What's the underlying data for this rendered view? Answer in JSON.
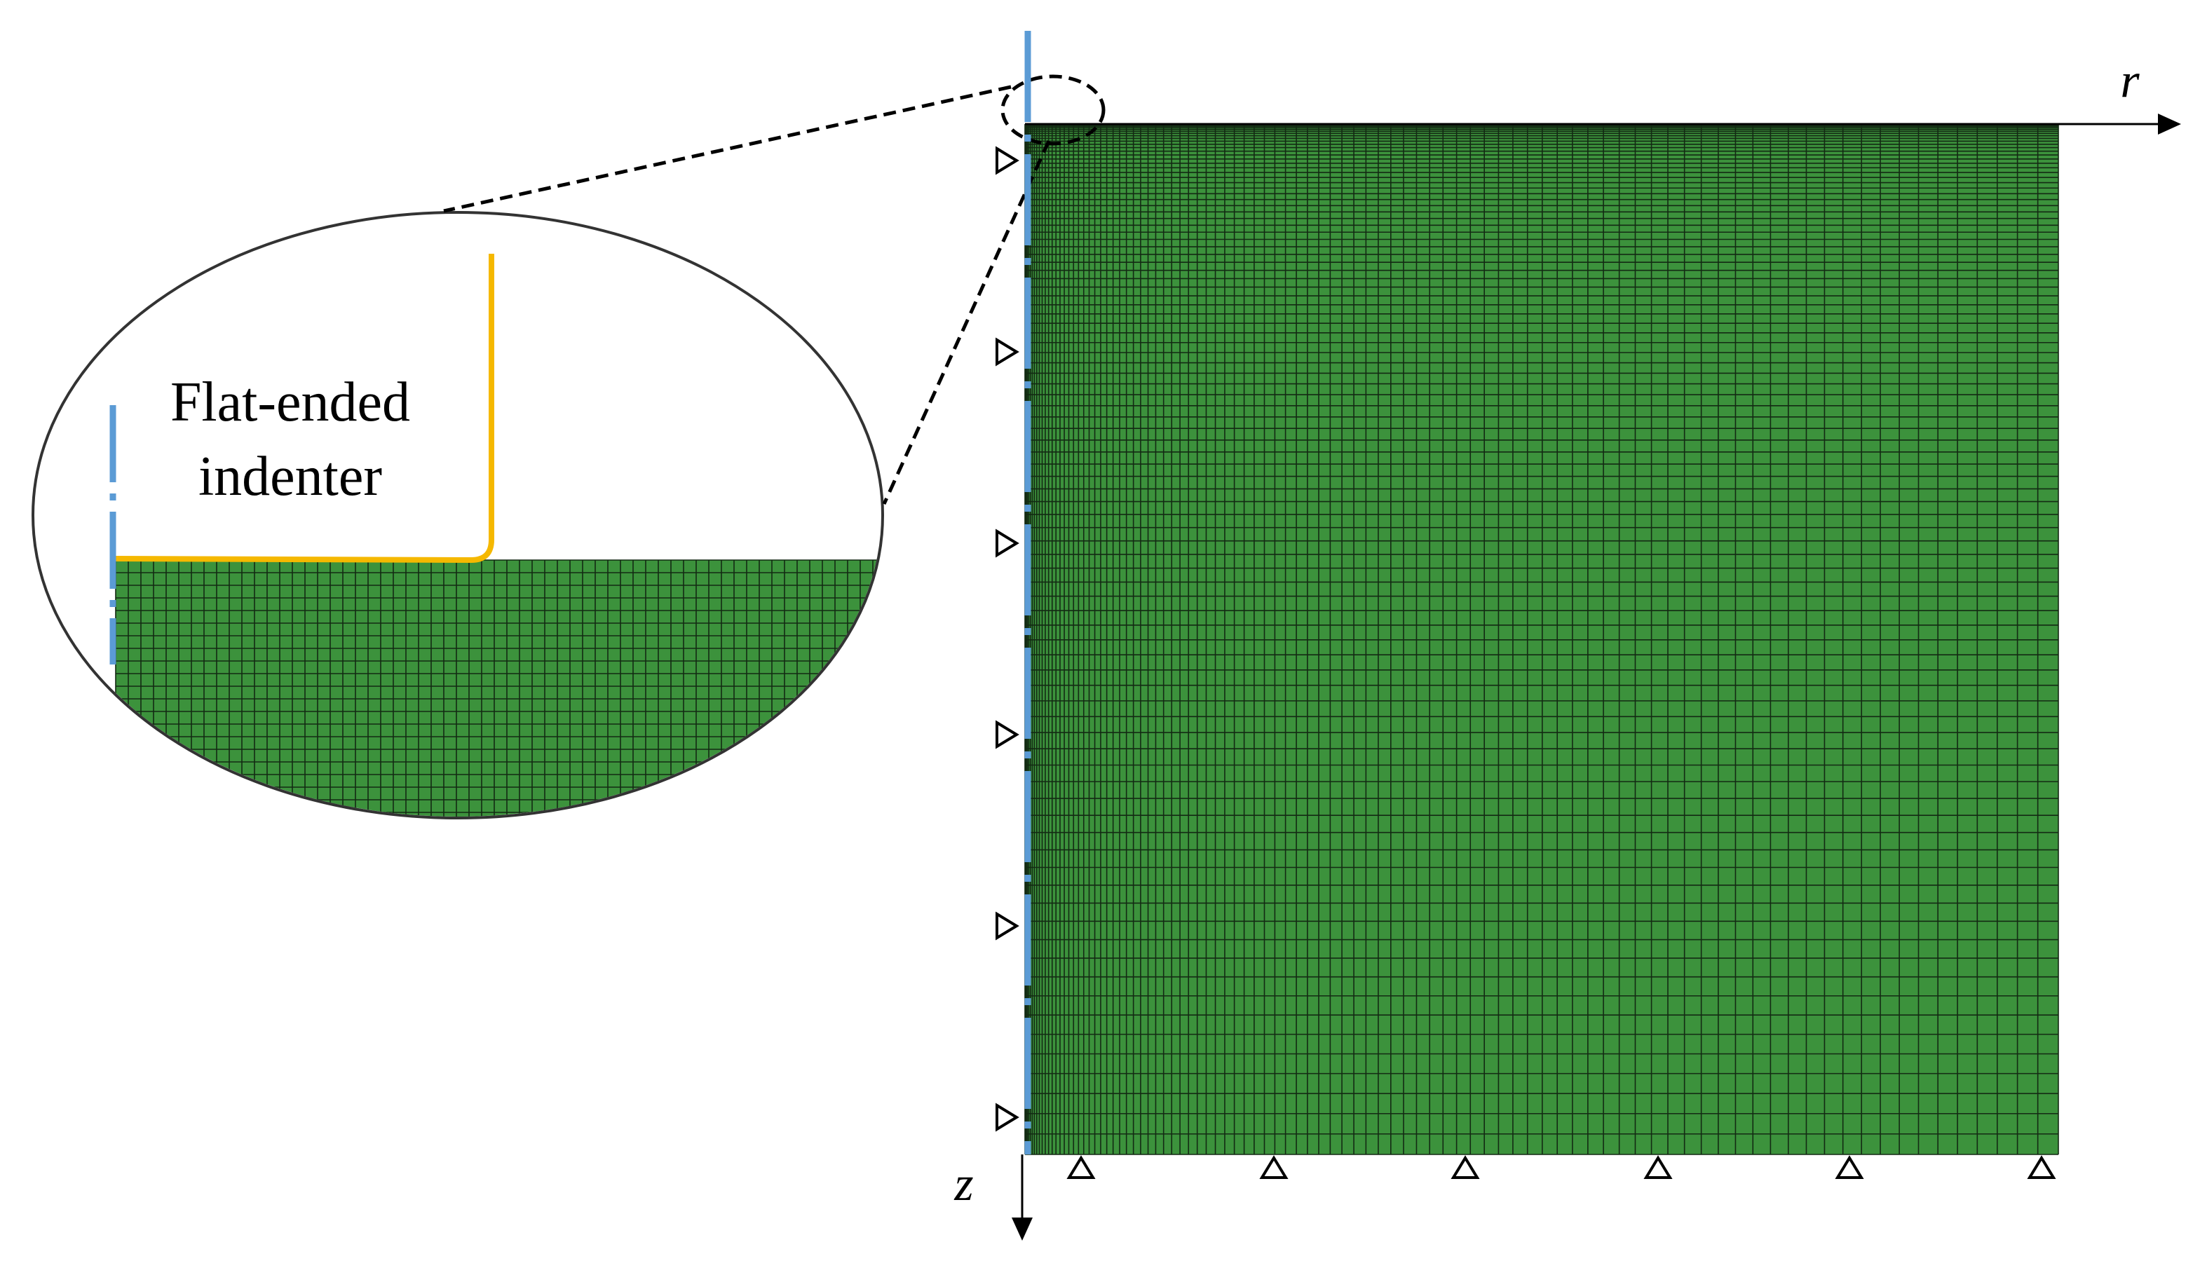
{
  "axes": {
    "r": "r",
    "z": "z"
  },
  "callout": {
    "label_lines": [
      "Flat-ended",
      "indenter"
    ]
  }
}
